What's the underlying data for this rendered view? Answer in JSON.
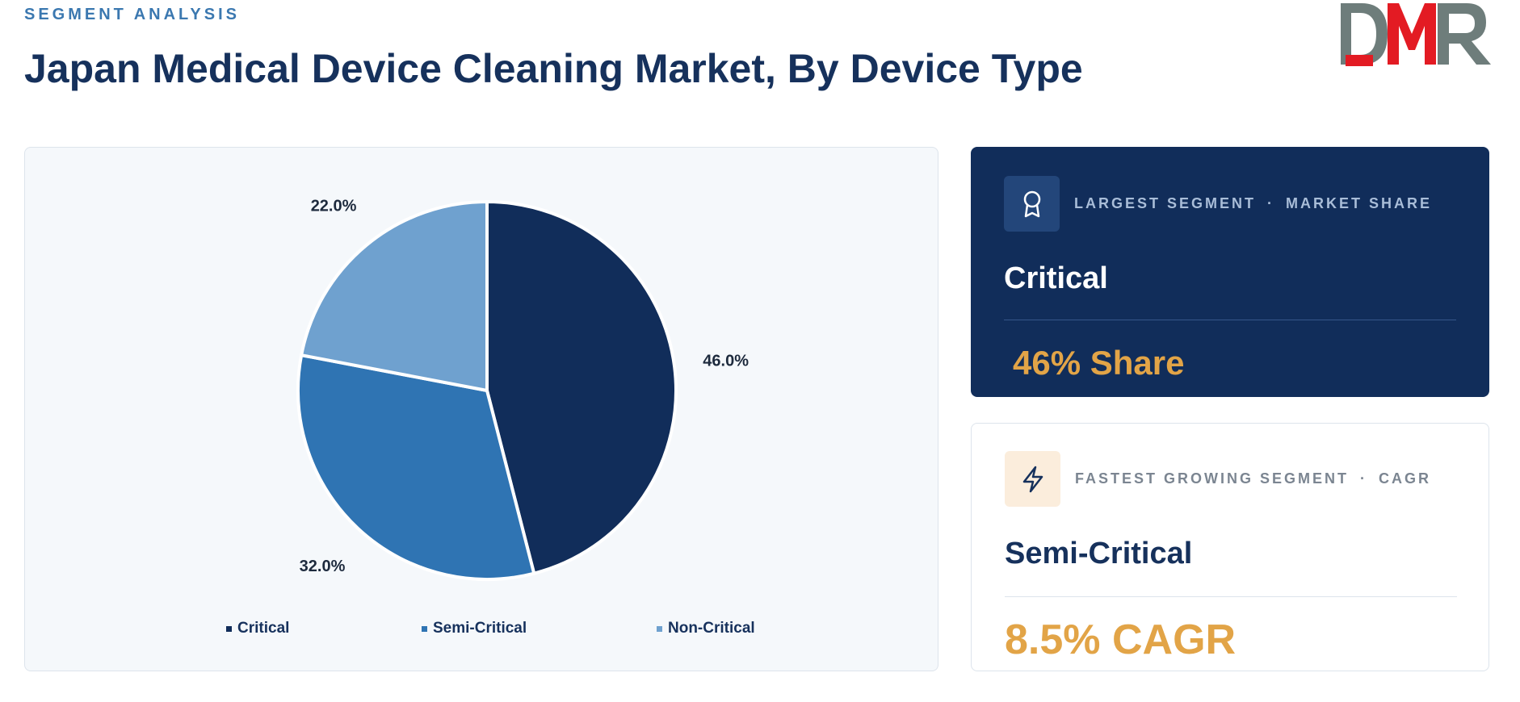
{
  "header": {
    "eyebrow": "SEGMENT ANALYSIS",
    "title": "Japan Medical Device Cleaning Market, By Device Type"
  },
  "logo": {
    "text": "DMR",
    "colors": {
      "D": "#6e7d7b",
      "M": "#e31b23",
      "R": "#6e7d7b"
    }
  },
  "chart_data": {
    "type": "pie",
    "title": "",
    "categories": [
      "Critical",
      "Semi-Critical",
      "Non-Critical"
    ],
    "values": [
      46.0,
      32.0,
      22.0
    ],
    "labels": [
      "46.0%",
      "32.0%",
      "22.0%"
    ],
    "colors": [
      "#112d5a",
      "#2f74b3",
      "#6fa1cf"
    ],
    "start": "12 o'clock, clockwise",
    "legend_position": "bottom"
  },
  "cards": {
    "largest": {
      "icon": "award-icon",
      "label": "LARGEST SEGMENT",
      "label_suffix": "MARKET SHARE",
      "segment": "Critical",
      "metric": "46% Share"
    },
    "fastest": {
      "icon": "lightning-icon",
      "label": "FASTEST GROWING SEGMENT",
      "label_suffix": "CAGR",
      "segment": "Semi-Critical",
      "metric": "8.5% CAGR"
    },
    "separator": "·"
  },
  "colors": {
    "navy": "#112d5a",
    "accent_orange": "#e2a447",
    "eyebrow_blue": "#3b78b0"
  }
}
